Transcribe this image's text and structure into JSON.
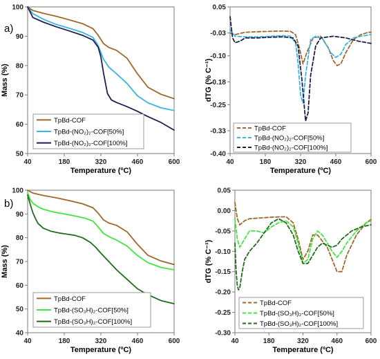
{
  "chart_data": [
    {
      "type": "line",
      "panel_label": "a)",
      "xlabel": "Temperature (ºC)",
      "ylabel": "Mass (%)",
      "xlim": [
        40,
        600
      ],
      "ylim": [
        50,
        100
      ],
      "xticks": [
        40,
        180,
        320,
        460,
        600
      ],
      "yticks": [
        50,
        60,
        70,
        80,
        90,
        100
      ],
      "legend_position": "bottom-left",
      "series": [
        {
          "name": "TpBd-COF",
          "color": "#a0662a",
          "dash": "solid",
          "x": [
            40,
            60,
            100,
            150,
            200,
            250,
            290,
            310,
            330,
            350,
            380,
            420,
            460,
            500,
            550,
            600
          ],
          "y": [
            100,
            98.8,
            97.8,
            96.8,
            95.6,
            94.3,
            92.6,
            90.3,
            87.5,
            86.2,
            85.2,
            82.5,
            77.2,
            72.6,
            70.2,
            68.7
          ]
        },
        {
          "name": "TpBd-(NO₂)₂-COF[50%]",
          "color": "#3bb4e3",
          "dash": "solid",
          "x": [
            40,
            60,
            100,
            150,
            200,
            250,
            290,
            310,
            330,
            350,
            380,
            420,
            460,
            500,
            550,
            600
          ],
          "y": [
            100,
            97.7,
            95.8,
            94.0,
            92.7,
            91.3,
            89.6,
            86.8,
            82.2,
            79.5,
            77.2,
            73.9,
            69.7,
            67.3,
            65.6,
            64.7
          ]
        },
        {
          "name": "TpBd-(NO₂)₂-COF[100%]",
          "color": "#1b1f4d",
          "dash": "solid",
          "x": [
            40,
            60,
            100,
            150,
            200,
            250,
            290,
            310,
            320,
            330,
            345,
            360,
            380,
            420,
            460,
            500,
            550,
            600
          ],
          "y": [
            100,
            96.4,
            94.8,
            93.2,
            91.8,
            90.3,
            88.7,
            86.2,
            83.0,
            77.5,
            70.5,
            68.3,
            67.4,
            66.0,
            64.4,
            62.6,
            60.6,
            58.0
          ]
        }
      ]
    },
    {
      "type": "line",
      "panel_label": "",
      "xlabel": "Temperature (ºC)",
      "ylabel": "dTG (% C⁻¹)",
      "xlim": [
        40,
        600
      ],
      "ylim": [
        -0.4,
        0.05
      ],
      "xticks": [
        40,
        180,
        320,
        460,
        600
      ],
      "yticks": [
        0.05,
        -0.03,
        -0.1,
        -0.18,
        -0.25,
        -0.33,
        -0.4
      ],
      "ytick_labels": [
        "0.05",
        "-0.03",
        "-0.10",
        "-0.18",
        "-0.25",
        "-0.33",
        "-0.40"
      ],
      "legend_position": "bottom-left",
      "series": [
        {
          "name": "TpBd-COF",
          "color": "#a0662a",
          "dash": "dashed",
          "x": [
            40,
            60,
            100,
            150,
            200,
            250,
            280,
            300,
            315,
            330,
            345,
            370,
            400,
            430,
            450,
            465,
            480,
            500,
            530,
            560,
            590,
            600
          ],
          "y": [
            -0.03,
            -0.035,
            -0.028,
            -0.026,
            -0.025,
            -0.024,
            -0.025,
            -0.035,
            -0.075,
            -0.125,
            -0.09,
            -0.045,
            -0.04,
            -0.075,
            -0.115,
            -0.13,
            -0.125,
            -0.09,
            -0.05,
            -0.035,
            -0.028,
            -0.028
          ]
        },
        {
          "name": "TpBd-(NO₂)₂-COF[50%]",
          "color": "#3bb4e3",
          "dash": "dashed",
          "x": [
            40,
            60,
            100,
            150,
            200,
            250,
            280,
            300,
            310,
            320,
            330,
            340,
            360,
            380,
            410,
            440,
            460,
            480,
            500,
            530,
            560,
            600
          ],
          "y": [
            -0.02,
            -0.04,
            -0.042,
            -0.042,
            -0.04,
            -0.038,
            -0.04,
            -0.06,
            -0.12,
            -0.22,
            -0.245,
            -0.16,
            -0.05,
            -0.04,
            -0.05,
            -0.09,
            -0.105,
            -0.095,
            -0.065,
            -0.045,
            -0.04,
            -0.035
          ]
        },
        {
          "name": "TpBd-(NO₂)₂-COF[100%]",
          "color": "#1b1f4d",
          "dash": "dashed",
          "x": [
            40,
            50,
            60,
            80,
            100,
            150,
            200,
            250,
            290,
            310,
            325,
            340,
            350,
            360,
            380,
            400,
            450,
            500,
            550,
            600
          ],
          "y": [
            0.02,
            -0.045,
            -0.06,
            -0.055,
            -0.045,
            -0.045,
            -0.043,
            -0.042,
            -0.045,
            -0.07,
            -0.17,
            -0.3,
            -0.275,
            -0.16,
            -0.07,
            -0.045,
            -0.04,
            -0.045,
            -0.055,
            -0.062
          ]
        }
      ]
    },
    {
      "type": "line",
      "panel_label": "b)",
      "xlabel": "Temperature (ºC)",
      "ylabel": "Mass (%)",
      "xlim": [
        40,
        600
      ],
      "ylim": [
        40,
        100
      ],
      "xticks": [
        40,
        180,
        320,
        460,
        600
      ],
      "yticks": [
        40,
        50,
        60,
        70,
        80,
        90,
        100
      ],
      "legend_position": "bottom-left",
      "series": [
        {
          "name": "TpBd-COF",
          "color": "#a0662a",
          "dash": "solid",
          "x": [
            40,
            60,
            100,
            150,
            200,
            250,
            290,
            310,
            330,
            350,
            380,
            420,
            460,
            500,
            550,
            600
          ],
          "y": [
            100,
            98.8,
            97.8,
            96.8,
            95.6,
            94.3,
            92.6,
            90.3,
            87.5,
            86.2,
            85.2,
            82.5,
            77.2,
            72.6,
            70.2,
            68.7
          ]
        },
        {
          "name": "TpBd-(SO₃H)₂-COF[50%]",
          "color": "#3fe63c",
          "dash": "solid",
          "x": [
            40,
            50,
            60,
            80,
            100,
            140,
            180,
            220,
            260,
            290,
            310,
            330,
            350,
            380,
            420,
            460,
            500,
            550,
            600
          ],
          "y": [
            99,
            96,
            94.5,
            93,
            92,
            90.8,
            90,
            89.2,
            88.2,
            87,
            84.5,
            81.8,
            80.5,
            79,
            76.5,
            72.5,
            69.5,
            67.5,
            66.5
          ]
        },
        {
          "name": "TpBd-(SO₃H)₂-COF[100%]",
          "color": "#1f6b1c",
          "dash": "solid",
          "x": [
            40,
            50,
            60,
            70,
            80,
            100,
            130,
            160,
            190,
            220,
            250,
            280,
            300,
            320,
            350,
            380,
            420,
            460,
            500,
            550,
            600
          ],
          "y": [
            98,
            94,
            90.5,
            88,
            86,
            84,
            82.7,
            82,
            81.5,
            81,
            80,
            78,
            76,
            73.5,
            70,
            66.5,
            62.5,
            58.5,
            56,
            53.5,
            52.2
          ]
        }
      ]
    },
    {
      "type": "line",
      "panel_label": "",
      "xlabel": "Temperature (ºC)",
      "ylabel": "dTG (% C⁻¹)",
      "xlim": [
        40,
        600
      ],
      "ylim": [
        -0.3,
        0.05
      ],
      "xticks": [
        40,
        180,
        320,
        460,
        600
      ],
      "yticks": [
        0.05,
        0.0,
        -0.05,
        -0.1,
        -0.15,
        -0.2,
        -0.25,
        -0.3
      ],
      "ytick_labels": [
        "0.05",
        "0.00",
        "-0.05",
        "-0.10",
        "-0.15",
        "-0.20",
        "-0.25",
        "-0.30"
      ],
      "legend_position": "bottom-left",
      "series": [
        {
          "name": "TpBd-COF",
          "color": "#a0662a",
          "dash": "dashed",
          "x": [
            40,
            50,
            60,
            80,
            100,
            150,
            200,
            250,
            280,
            300,
            320,
            340,
            360,
            380,
            400,
            420,
            440,
            460,
            480,
            500,
            540,
            580,
            600
          ],
          "y": [
            0.02,
            -0.02,
            -0.035,
            -0.025,
            -0.02,
            -0.018,
            -0.016,
            -0.015,
            -0.03,
            -0.07,
            -0.12,
            -0.1,
            -0.06,
            -0.06,
            -0.075,
            -0.09,
            -0.12,
            -0.15,
            -0.15,
            -0.11,
            -0.06,
            -0.03,
            -0.022
          ]
        },
        {
          "name": "TpBd-(SO₃H)₂-COF[50%]",
          "color": "#3fe63c",
          "dash": "dashed",
          "x": [
            40,
            50,
            60,
            80,
            100,
            130,
            160,
            190,
            220,
            250,
            280,
            300,
            320,
            340,
            360,
            380,
            400,
            420,
            440,
            460,
            480,
            500,
            540,
            580,
            600
          ],
          "y": [
            -0.02,
            -0.07,
            -0.09,
            -0.07,
            -0.05,
            -0.05,
            -0.055,
            -0.04,
            -0.03,
            -0.025,
            -0.04,
            -0.08,
            -0.13,
            -0.12,
            -0.07,
            -0.05,
            -0.06,
            -0.08,
            -0.1,
            -0.115,
            -0.1,
            -0.08,
            -0.05,
            -0.03,
            -0.025
          ]
        },
        {
          "name": "TpBd-(SO₃H)₂-COF[100%]",
          "color": "#1f6b1c",
          "dash": "dashed",
          "x": [
            40,
            45,
            50,
            55,
            60,
            70,
            80,
            100,
            130,
            160,
            190,
            220,
            250,
            280,
            300,
            320,
            340,
            360,
            380,
            400,
            420,
            440,
            460,
            480,
            520,
            560,
            600
          ],
          "y": [
            -0.08,
            -0.15,
            -0.185,
            -0.195,
            -0.19,
            -0.15,
            -0.12,
            -0.1,
            -0.08,
            -0.055,
            -0.03,
            -0.02,
            -0.03,
            -0.06,
            -0.1,
            -0.13,
            -0.13,
            -0.11,
            -0.09,
            -0.08,
            -0.085,
            -0.09,
            -0.085,
            -0.07,
            -0.05,
            -0.04,
            -0.035
          ]
        }
      ]
    }
  ]
}
